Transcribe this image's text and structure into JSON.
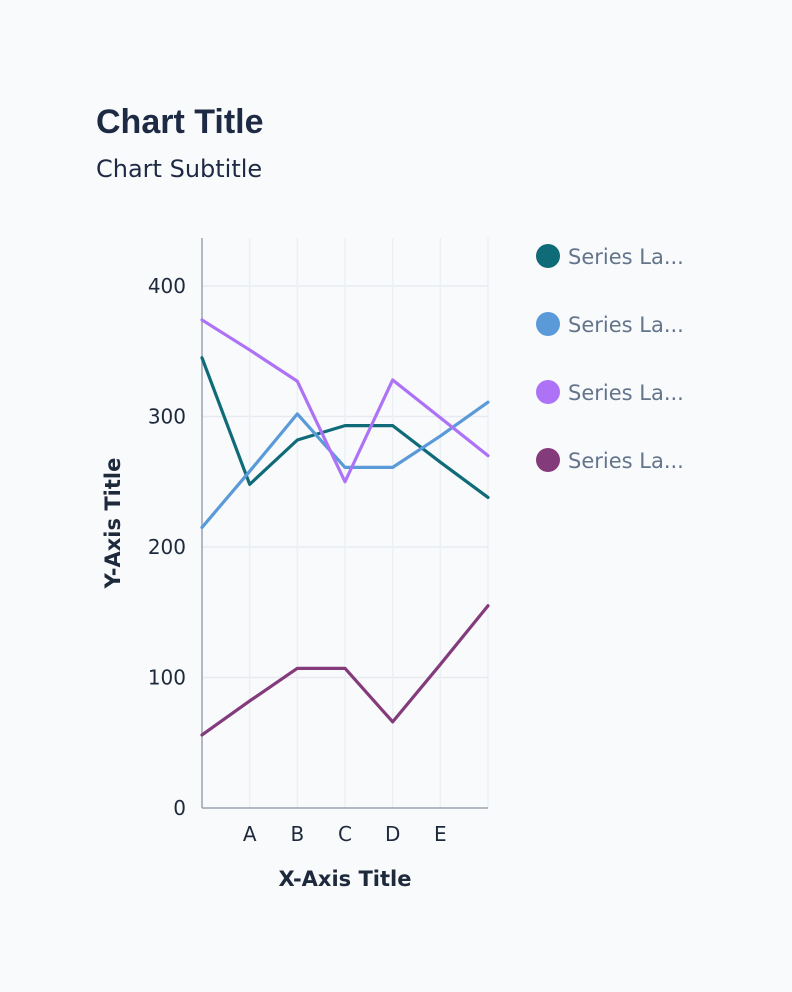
{
  "chart_data": {
    "type": "line",
    "title": "Chart Title",
    "subtitle": "Chart Subtitle",
    "xlabel": "X-Axis Title",
    "ylabel": "Y-Axis Title",
    "categories": [
      "",
      "A",
      "B",
      "C",
      "D",
      "E",
      ""
    ],
    "ylim": [
      0,
      400
    ],
    "yticks": [
      0,
      100,
      200,
      300,
      400
    ],
    "grid": true,
    "legend_position": "right",
    "series": [
      {
        "name": "Series La...",
        "color": "#0f6b78",
        "values": [
          345,
          248,
          282,
          293,
          293,
          265,
          238
        ]
      },
      {
        "name": "Series La...",
        "color": "#5b9ad8",
        "values": [
          215,
          258,
          302,
          261,
          261,
          285,
          311
        ]
      },
      {
        "name": "Series La...",
        "color": "#ad72f5",
        "values": [
          374,
          351,
          327,
          250,
          328,
          299,
          270
        ]
      },
      {
        "name": "Series La...",
        "color": "#843b7c",
        "values": [
          56,
          82,
          107,
          107,
          66,
          110,
          155
        ]
      }
    ]
  }
}
